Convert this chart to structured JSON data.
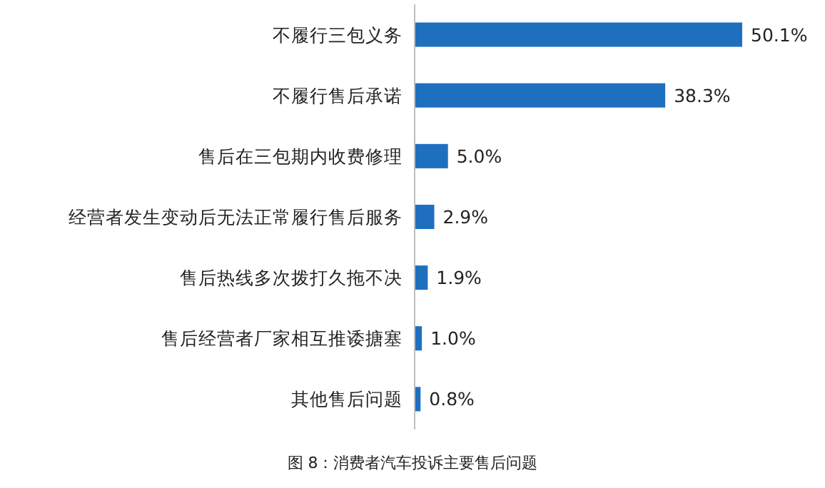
{
  "chart_data": {
    "type": "bar",
    "orientation": "horizontal",
    "title": "图 8：消费者汽车投诉主要售后问题",
    "categories": [
      "不履行三包义务",
      "不履行售后承诺",
      "售后在三包期内收费修理",
      "经营者发生变动后无法正常履行售后服务",
      "售后热线多次拨打久拖不决",
      "售后经营者厂家相互推诿搪塞",
      "其他售后问题"
    ],
    "values": [
      50.1,
      38.3,
      5.0,
      2.9,
      1.9,
      1.0,
      0.8
    ],
    "value_labels": [
      "50.1%",
      "38.3%",
      "5.0%",
      "2.9%",
      "1.9%",
      "1.0%",
      "0.8%"
    ],
    "color": "#1f6fbf"
  }
}
